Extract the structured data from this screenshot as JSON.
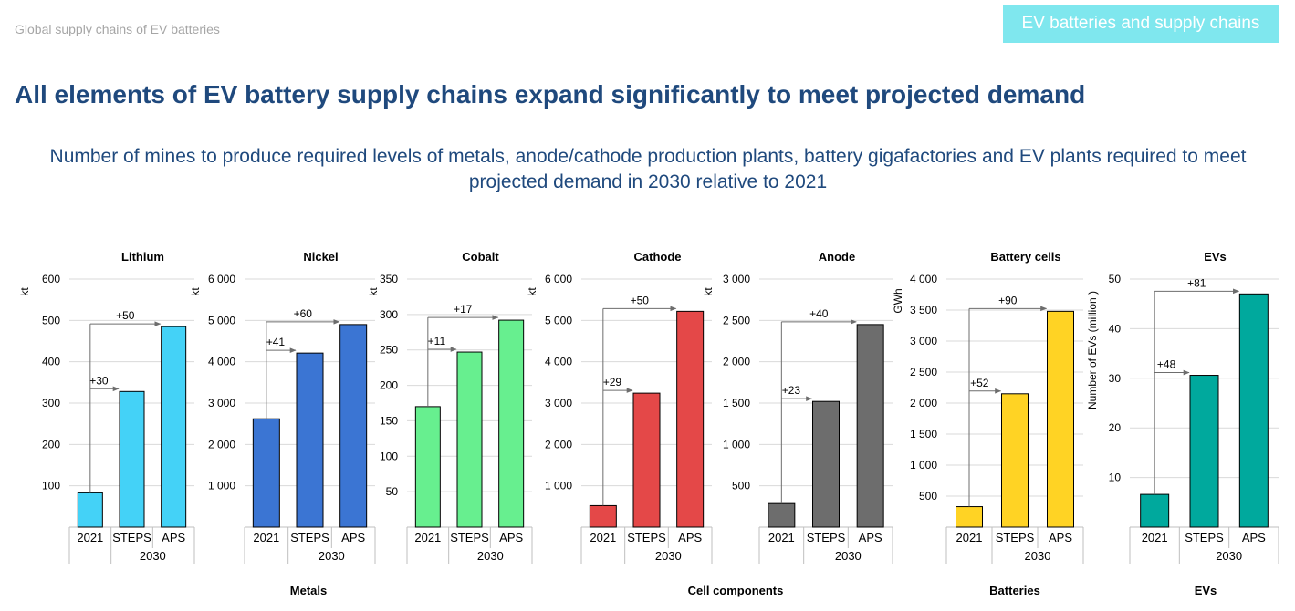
{
  "header": {
    "breadcrumb": "Global supply chains of EV batteries",
    "badge": "EV batteries and supply chains",
    "title": "All elements of EV battery supply chains expand significantly to meet projected demand",
    "subtitle": "Number of mines to produce required levels of metals, anode/cathode production plants, battery gigafactories and EV plants required to meet projected demand in 2030 relative to 2021"
  },
  "groups": [
    {
      "label": "Metals"
    },
    {
      "label": "Cell components"
    },
    {
      "label": "Batteries"
    },
    {
      "label": "EVs"
    }
  ],
  "chart_data": [
    {
      "type": "bar",
      "title": "Lithium",
      "ylabel": "kt",
      "categories": [
        "2021",
        "STEPS",
        "APS"
      ],
      "category_group": "2030",
      "values": [
        83,
        328,
        485
      ],
      "ylim": [
        0,
        600
      ],
      "yticks": [
        100,
        200,
        300,
        400,
        500,
        600
      ],
      "ytick_labels": [
        "100",
        "200",
        "300",
        "400",
        "500",
        "600"
      ],
      "annotations": [
        "+30",
        "+50"
      ],
      "color": "#44d2f7"
    },
    {
      "type": "bar",
      "title": "Nickel",
      "ylabel": "kt",
      "categories": [
        "2021",
        "STEPS",
        "APS"
      ],
      "category_group": "2030",
      "values": [
        2620,
        4210,
        4900
      ],
      "ylim": [
        0,
        6000
      ],
      "yticks": [
        1000,
        2000,
        3000,
        4000,
        5000,
        6000
      ],
      "ytick_labels": [
        "1 000",
        "2 000",
        "3 000",
        "4 000",
        "5 000",
        "6 000"
      ],
      "annotations": [
        "+41",
        "+60"
      ],
      "color": "#3b75d3"
    },
    {
      "type": "bar",
      "title": "Cobalt",
      "ylabel": "kt",
      "categories": [
        "2021",
        "STEPS",
        "APS"
      ],
      "category_group": "2030",
      "values": [
        170,
        247,
        292
      ],
      "ylim": [
        0,
        350
      ],
      "yticks": [
        50,
        100,
        150,
        200,
        250,
        300,
        350
      ],
      "ytick_labels": [
        "50",
        "100",
        "150",
        "200",
        "250",
        "300",
        "350"
      ],
      "annotations": [
        "+11",
        "+17"
      ],
      "color": "#67ef8f"
    },
    {
      "type": "bar",
      "title": "Cathode",
      "ylabel": "kt",
      "categories": [
        "2021",
        "STEPS",
        "APS"
      ],
      "category_group": "2030",
      "values": [
        520,
        3240,
        5220
      ],
      "ylim": [
        0,
        6000
      ],
      "yticks": [
        1000,
        2000,
        3000,
        4000,
        5000,
        6000
      ],
      "ytick_labels": [
        "1 000",
        "2 000",
        "3 000",
        "4 000",
        "5 000",
        "6 000"
      ],
      "annotations": [
        "+29",
        "+50"
      ],
      "color": "#e44848"
    },
    {
      "type": "bar",
      "title": "Anode",
      "ylabel": "kt",
      "categories": [
        "2021",
        "STEPS",
        "APS"
      ],
      "category_group": "2030",
      "values": [
        285,
        1520,
        2450
      ],
      "ylim": [
        0,
        3000
      ],
      "yticks": [
        500,
        1000,
        1500,
        2000,
        2500,
        3000
      ],
      "ytick_labels": [
        "500",
        "1 000",
        "1 500",
        "2 000",
        "2 500",
        "3 000"
      ],
      "annotations": [
        "+23",
        "+40"
      ],
      "color": "#6d6d6d"
    },
    {
      "type": "bar",
      "title": "Battery cells",
      "ylabel": "GWh",
      "categories": [
        "2021",
        "STEPS",
        "APS"
      ],
      "category_group": "2030",
      "values": [
        330,
        2150,
        3480
      ],
      "ylim": [
        0,
        4000
      ],
      "yticks": [
        500,
        1000,
        1500,
        2000,
        2500,
        3000,
        3500,
        4000
      ],
      "ytick_labels": [
        "500",
        "1 000",
        "1 500",
        "2 000",
        "2 500",
        "3 000",
        "3 500",
        "4 000"
      ],
      "annotations": [
        "+52",
        "+90"
      ],
      "color": "#ffd324"
    },
    {
      "type": "bar",
      "title": "EVs",
      "ylabel": "Number of EVs (million )",
      "categories": [
        "2021",
        "STEPS",
        "APS"
      ],
      "category_group": "2030",
      "values": [
        6.6,
        30.6,
        47
      ],
      "ylim": [
        0,
        50
      ],
      "yticks": [
        10,
        20,
        30,
        40,
        50
      ],
      "ytick_labels": [
        "10",
        "20",
        "30",
        "40",
        "50"
      ],
      "annotations": [
        "+48",
        "+81"
      ],
      "color": "#00a99d"
    }
  ]
}
